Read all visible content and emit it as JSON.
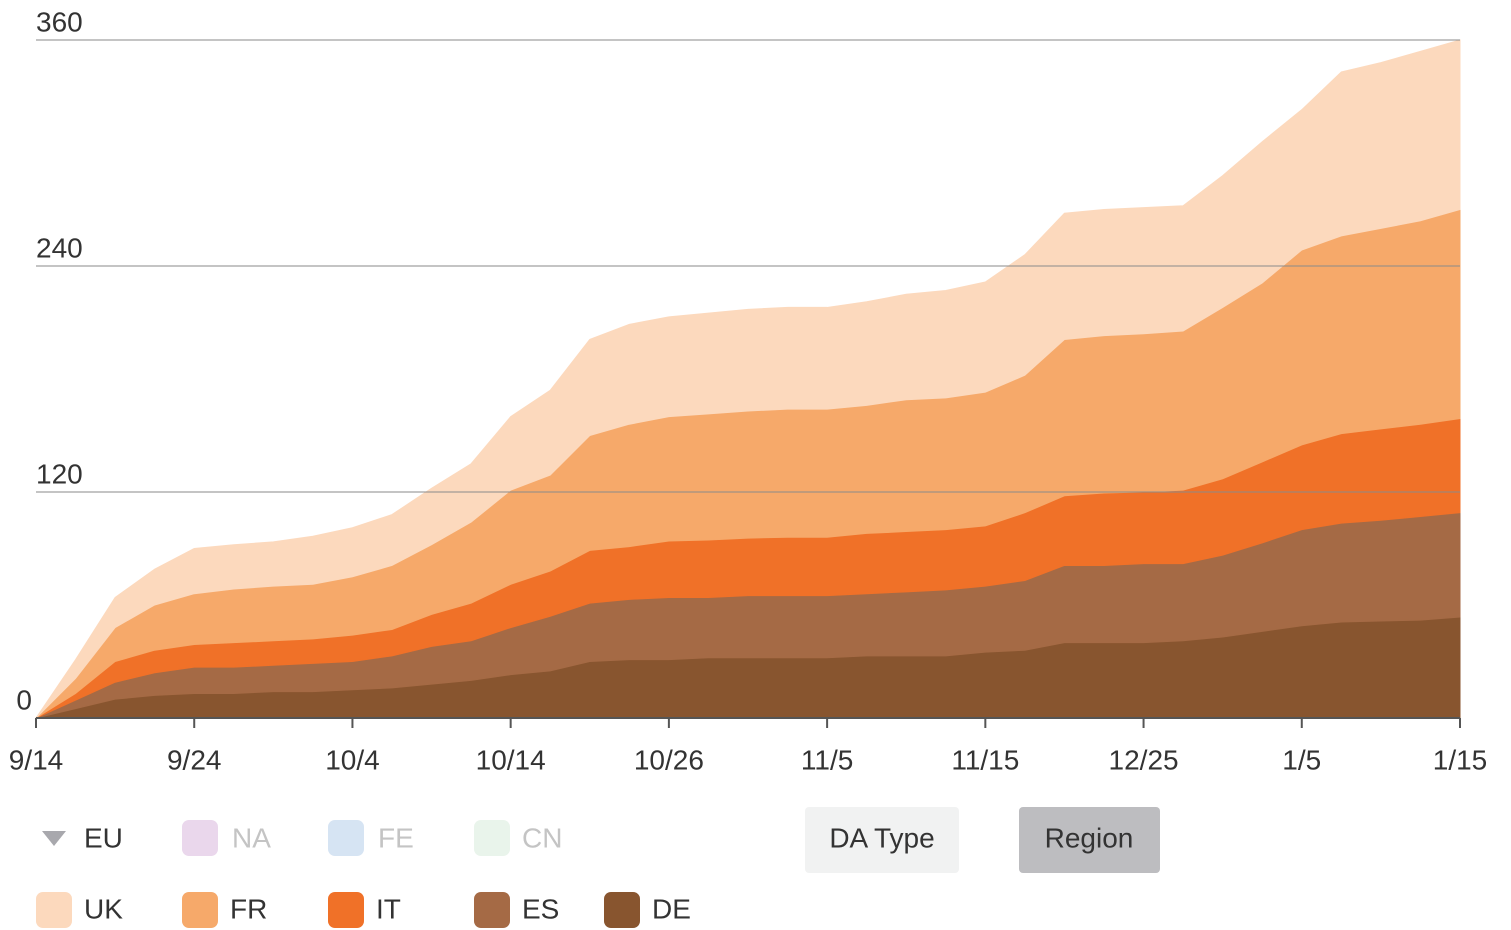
{
  "chart_data": {
    "type": "stacked_area",
    "categories": [
      "9/14",
      null,
      null,
      null,
      "9/24",
      null,
      null,
      null,
      "10/4",
      null,
      null,
      null,
      "10/14",
      null,
      null,
      null,
      "10/26",
      null,
      null,
      null,
      "11/5",
      null,
      null,
      null,
      "11/15",
      null,
      null,
      null,
      "12/25",
      null,
      null,
      null,
      "1/5",
      null,
      null,
      null,
      "1/15"
    ],
    "series": [
      {
        "name": "UK",
        "color": "#fcd9bd",
        "values": [
          0,
          10,
          16,
          19,
          24,
          23.5,
          23.5,
          25.5,
          26,
          27,
          30,
          31,
          39,
          45,
          51,
          53,
          53,
          53.5,
          54,
          54,
          54,
          55,
          56,
          57,
          58.5,
          64,
          67,
          67,
          67,
          66.5,
          70,
          75,
          74.5,
          87,
          88,
          90,
          90
        ]
      },
      {
        "name": "FR",
        "color": "#f6a96a",
        "values": [
          0,
          8,
          18,
          24,
          27,
          28.5,
          29,
          29,
          31,
          34,
          37,
          43,
          50,
          51,
          61,
          65,
          66,
          67,
          67.5,
          68,
          68,
          68,
          70,
          70,
          71,
          73,
          83,
          83.5,
          84,
          84.5,
          91,
          95,
          103.5,
          105,
          106.5,
          108,
          111
        ]
      },
      {
        "name": "IT",
        "color": "#f07128",
        "values": [
          0,
          3.5,
          11,
          12,
          12,
          13,
          13,
          13,
          14,
          14,
          17,
          20,
          23,
          24,
          28,
          28,
          30,
          30.5,
          30.5,
          31,
          31,
          32,
          32,
          32,
          32,
          36,
          37,
          38.5,
          38,
          39,
          40.5,
          43,
          45,
          47.5,
          48.5,
          49,
          50
        ]
      },
      {
        "name": "ES",
        "color": "#a56a45",
        "values": [
          0,
          4.5,
          9,
          12,
          14,
          14,
          14,
          15,
          15,
          17,
          20,
          21,
          25,
          29,
          31,
          32,
          33,
          32,
          33,
          33,
          33,
          33,
          34,
          35,
          35,
          37,
          41,
          41,
          42,
          41,
          43.5,
          47,
          51,
          52.5,
          53.5,
          55,
          55.4
        ]
      },
      {
        "name": "DE",
        "color": "#88552f",
        "values": [
          0,
          5,
          10,
          12,
          13,
          13,
          14,
          14,
          15,
          16,
          18,
          20,
          23,
          25,
          30,
          31,
          31,
          32,
          32,
          32,
          32,
          33,
          33,
          33,
          35,
          36,
          40,
          40,
          40,
          41,
          43,
          46,
          49,
          51,
          51.5,
          52,
          53.6
        ]
      }
    ],
    "ylim": [
      0,
      360
    ],
    "yticks": [
      0,
      120,
      240,
      360
    ],
    "grid": true
  },
  "controls": {
    "groups": [
      "EU",
      "NA",
      "FE",
      "CN"
    ],
    "buttons": [
      "DA Type",
      "Region"
    ]
  }
}
